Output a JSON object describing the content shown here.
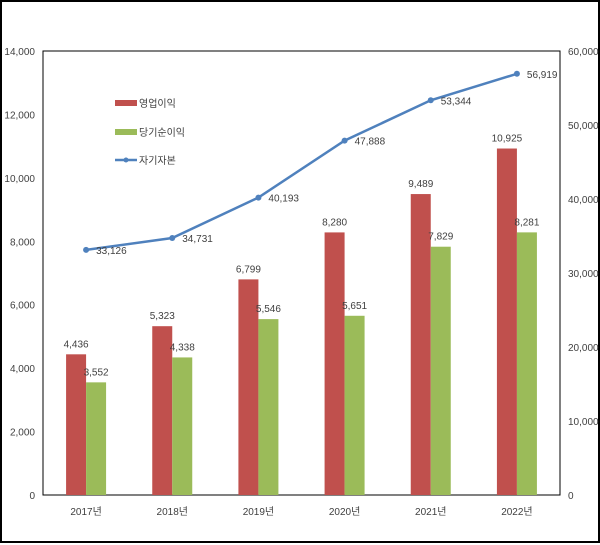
{
  "chart_data": {
    "type": "bar+line",
    "categories": [
      "2017년",
      "2018년",
      "2019년",
      "2020년",
      "2021년",
      "2022년"
    ],
    "series": [
      {
        "name": "영업이익",
        "type": "bar",
        "axis": "left",
        "color": "#C0504D",
        "values": [
          4436,
          5323,
          6799,
          8280,
          9489,
          10925
        ],
        "labels": [
          "4,436",
          "5,323",
          "6,799",
          "8,280",
          "9,489",
          "10,925"
        ]
      },
      {
        "name": "당기순이익",
        "type": "bar",
        "axis": "left",
        "color": "#9BBB59",
        "values": [
          3552,
          4338,
          5546,
          5651,
          7829,
          8281
        ],
        "labels": [
          "3,552",
          "4,338",
          "5,546",
          "5,651",
          "7,829",
          "8,281"
        ]
      },
      {
        "name": "자기자본",
        "type": "line",
        "axis": "right",
        "color": "#4F81BD",
        "values": [
          33126,
          34731,
          40193,
          47888,
          53344,
          56919
        ],
        "labels": [
          "33,126",
          "34,731",
          "40,193",
          "47,888",
          "53,344",
          "56,919"
        ]
      }
    ],
    "y_left": {
      "range": [
        0,
        14000
      ],
      "ticks": [
        "0",
        "2,000",
        "4,000",
        "6,000",
        "8,000",
        "10,000",
        "12,000",
        "14,000"
      ]
    },
    "y_right": {
      "range": [
        0,
        60000
      ],
      "ticks": [
        "0",
        "10,000",
        "20,000",
        "30,000",
        "40,000",
        "50,000",
        "60,000"
      ]
    },
    "legend": "top-left inside",
    "grid": false
  }
}
